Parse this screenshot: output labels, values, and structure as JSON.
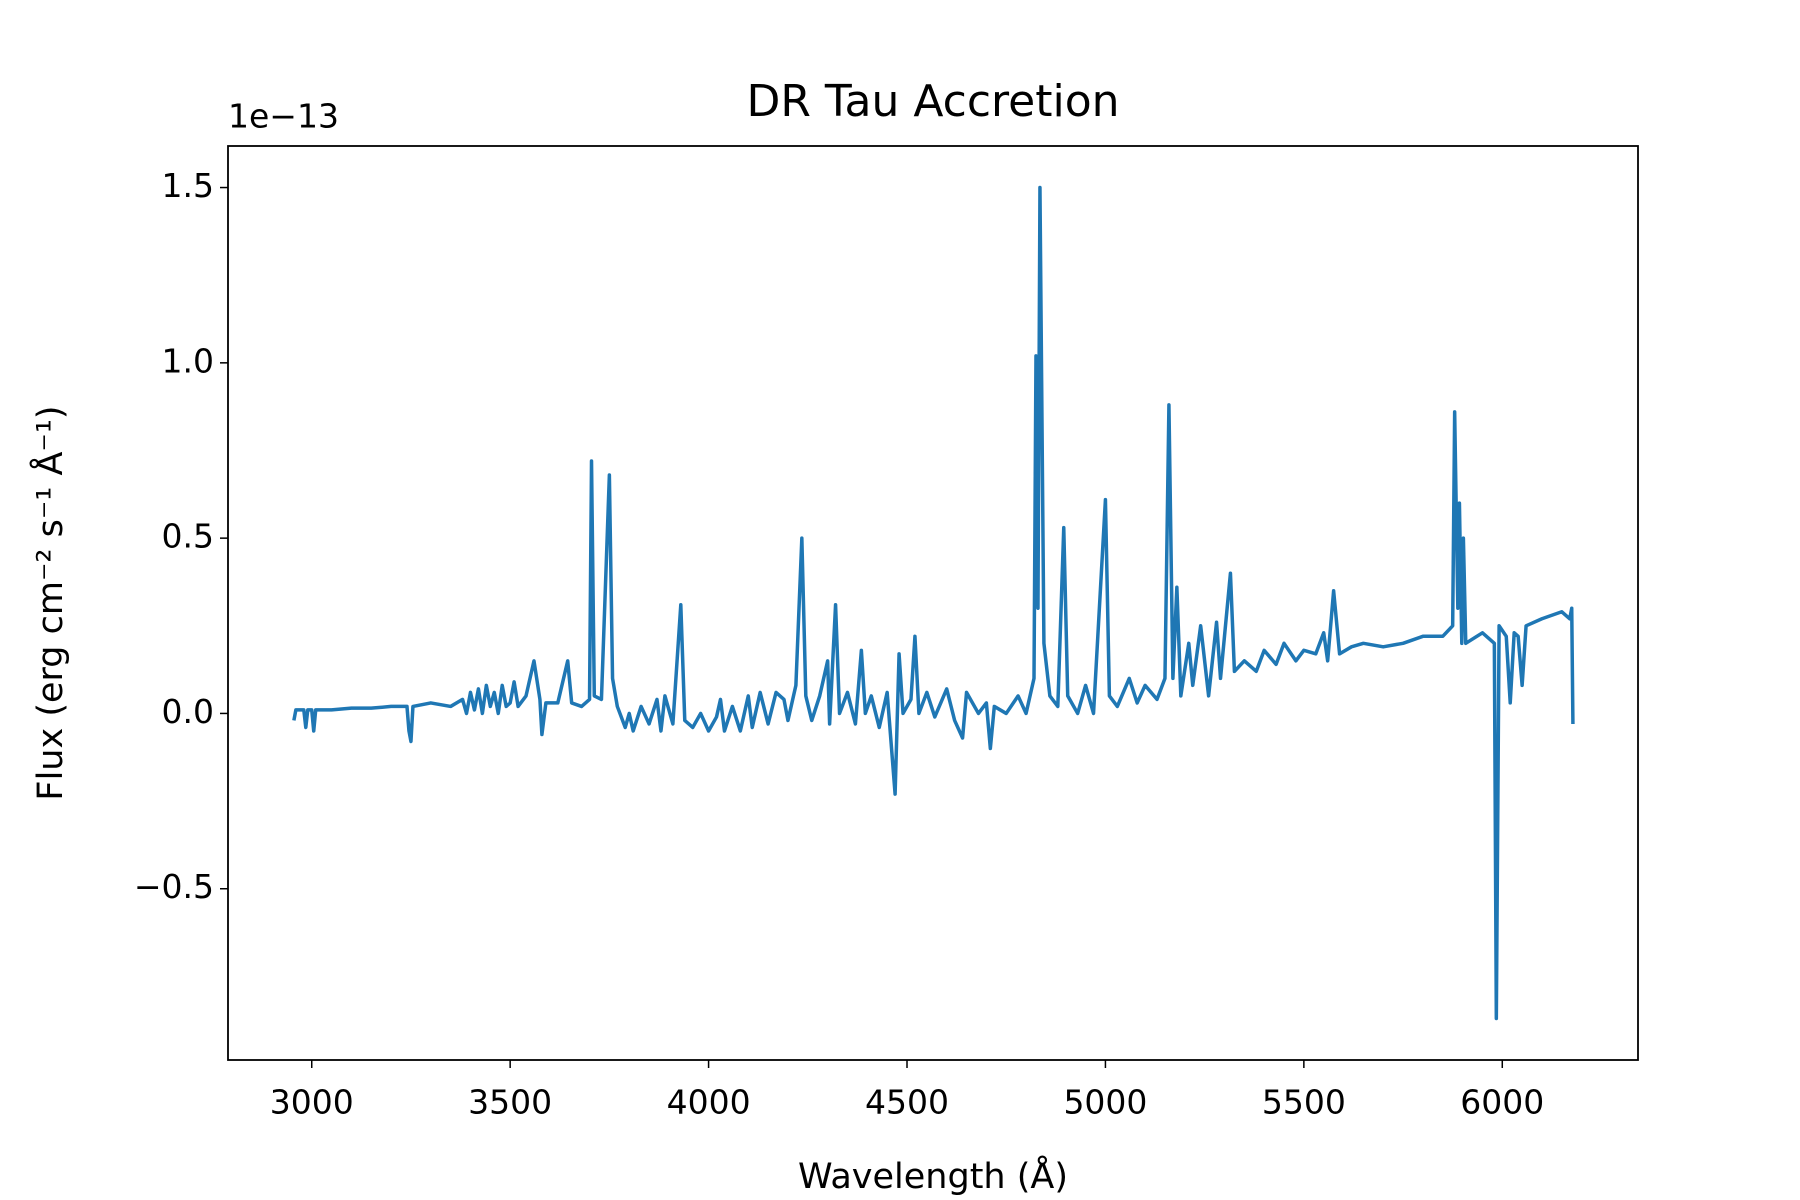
{
  "chart_data": {
    "type": "line",
    "title": "DR Tau Accretion",
    "x_label": "Wavelength (Å)",
    "y_label": "Flux (erg cm⁻² s⁻¹ Å⁻¹)",
    "y_offset_text": "1e−13",
    "xlim": [
      2789,
      6342
    ],
    "ylim": [
      -0.9885,
      1.6185
    ],
    "xticks": [
      3000,
      3500,
      4000,
      4500,
      5000,
      5500,
      6000
    ],
    "yticks": [
      {
        "value": -0.5,
        "label": "−0.5"
      },
      {
        "value": 0,
        "label": "0.0"
      },
      0.5,
      {
        "value": 1,
        "label": "1.0"
      },
      1.5
    ],
    "grid": false,
    "series": [
      {
        "color": "#1f77b4",
        "x": [
          2955,
          2960,
          2980,
          2985,
          2990,
          3000,
          3005,
          3010,
          3050,
          3100,
          3150,
          3200,
          3240,
          3245,
          3250,
          3255,
          3300,
          3350,
          3380,
          3390,
          3400,
          3410,
          3420,
          3430,
          3440,
          3450,
          3460,
          3470,
          3480,
          3490,
          3500,
          3510,
          3520,
          3540,
          3560,
          3575,
          3580,
          3590,
          3620,
          3645,
          3655,
          3680,
          3700,
          3705,
          3712,
          3730,
          3750,
          3758,
          3770,
          3790,
          3800,
          3810,
          3830,
          3850,
          3870,
          3880,
          3890,
          3910,
          3930,
          3940,
          3960,
          3980,
          4000,
          4020,
          4030,
          4040,
          4060,
          4080,
          4100,
          4110,
          4130,
          4150,
          4170,
          4190,
          4200,
          4220,
          4235,
          4245,
          4260,
          4280,
          4300,
          4305,
          4320,
          4330,
          4350,
          4370,
          4385,
          4395,
          4410,
          4430,
          4450,
          4470,
          4480,
          4490,
          4510,
          4520,
          4530,
          4550,
          4570,
          4600,
          4620,
          4640,
          4650,
          4680,
          4700,
          4710,
          4720,
          4750,
          4780,
          4800,
          4820,
          4825,
          4830,
          4835,
          4845,
          4860,
          4880,
          4895,
          4905,
          4930,
          4950,
          4970,
          5000,
          5010,
          5030,
          5060,
          5080,
          5100,
          5130,
          5150,
          5160,
          5170,
          5180,
          5190,
          5210,
          5220,
          5240,
          5260,
          5280,
          5290,
          5315,
          5325,
          5350,
          5380,
          5400,
          5430,
          5450,
          5480,
          5500,
          5530,
          5550,
          5560,
          5575,
          5590,
          5620,
          5650,
          5700,
          5750,
          5800,
          5850,
          5875,
          5880,
          5888,
          5892,
          5898,
          5902,
          5908,
          5950,
          5980,
          5985,
          5992,
          6010,
          6020,
          6030,
          6040,
          6050,
          6060,
          6100,
          6150,
          6170,
          6175,
          6178
        ],
        "values": [
          -0.02,
          0.01,
          0.01,
          -0.04,
          0.01,
          0.01,
          -0.05,
          0.01,
          0.01,
          0.015,
          0.015,
          0.02,
          0.02,
          -0.05,
          -0.08,
          0.02,
          0.03,
          0.02,
          0.04,
          0.0,
          0.06,
          0.01,
          0.07,
          0.0,
          0.08,
          0.02,
          0.06,
          0.0,
          0.08,
          0.02,
          0.03,
          0.09,
          0.02,
          0.05,
          0.15,
          0.04,
          -0.06,
          0.03,
          0.03,
          0.15,
          0.03,
          0.02,
          0.04,
          0.72,
          0.05,
          0.04,
          0.68,
          0.1,
          0.02,
          -0.04,
          0.0,
          -0.05,
          0.02,
          -0.03,
          0.04,
          -0.05,
          0.05,
          -0.03,
          0.31,
          -0.02,
          -0.04,
          0.0,
          -0.05,
          -0.01,
          0.04,
          -0.05,
          0.02,
          -0.05,
          0.05,
          -0.04,
          0.06,
          -0.03,
          0.06,
          0.04,
          -0.02,
          0.08,
          0.5,
          0.05,
          -0.02,
          0.05,
          0.15,
          -0.03,
          0.31,
          0.0,
          0.06,
          -0.03,
          0.18,
          0.0,
          0.05,
          -0.04,
          0.06,
          -0.23,
          0.17,
          0.0,
          0.04,
          0.22,
          0.0,
          0.06,
          -0.01,
          0.07,
          -0.02,
          -0.07,
          0.06,
          0.0,
          0.03,
          -0.1,
          0.02,
          0.0,
          0.05,
          0.0,
          0.1,
          1.02,
          0.3,
          1.5,
          0.2,
          0.05,
          0.02,
          0.53,
          0.05,
          0.0,
          0.08,
          0.0,
          0.61,
          0.05,
          0.02,
          0.1,
          0.03,
          0.08,
          0.04,
          0.1,
          0.88,
          0.1,
          0.36,
          0.05,
          0.2,
          0.08,
          0.25,
          0.05,
          0.26,
          0.1,
          0.4,
          0.12,
          0.15,
          0.12,
          0.18,
          0.14,
          0.2,
          0.15,
          0.18,
          0.17,
          0.23,
          0.15,
          0.35,
          0.17,
          0.19,
          0.2,
          0.19,
          0.2,
          0.22,
          0.22,
          0.25,
          0.86,
          0.3,
          0.6,
          0.2,
          0.5,
          0.2,
          0.23,
          0.2,
          -0.87,
          0.25,
          0.22,
          0.03,
          0.23,
          0.22,
          0.08,
          0.25,
          0.27,
          0.29,
          0.27,
          0.3,
          -0.03
        ]
      }
    ]
  }
}
